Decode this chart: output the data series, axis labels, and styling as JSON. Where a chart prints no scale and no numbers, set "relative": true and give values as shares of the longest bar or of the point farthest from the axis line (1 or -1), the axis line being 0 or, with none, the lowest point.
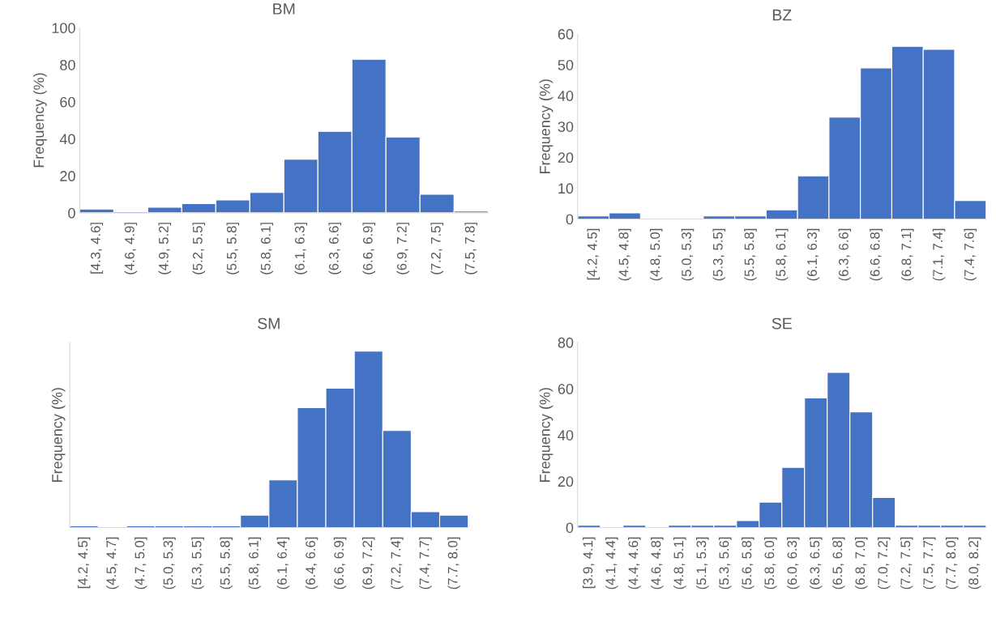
{
  "chart_data": [
    {
      "type": "bar",
      "title": "BM",
      "ylabel": "Frequency (%)",
      "categories": [
        "[4.3, 4.6]",
        "(4.6, 4.9]",
        "(4.9, 5.2]",
        "(5.2, 5.5]",
        "(5.5, 5.8]",
        "(5.8, 6.1]",
        "(6.1, 6.3]",
        "(6.3, 6.6]",
        "(6.6, 6.9]",
        "(6.9, 7.2]",
        "(7.2, 7.5]",
        "(7.5, 7.8]"
      ],
      "values": [
        2,
        0,
        3,
        5,
        7,
        11,
        29,
        44,
        83,
        41,
        10,
        1
      ],
      "color": "#4472c4",
      "ylim": [
        0,
        100
      ],
      "yticks": [
        0,
        20,
        40,
        60,
        80,
        100
      ],
      "grid": false,
      "legend": false
    },
    {
      "type": "bar",
      "title": "BZ",
      "ylabel": "Frequency (%)",
      "categories": [
        "[4.2, 4.5]",
        "(4.5, 4.8]",
        "(4.8, 5.0]",
        "(5.0, 5.3]",
        "(5.3, 5.5]",
        "(5.5, 5.8]",
        "(5.8, 6.1]",
        "(6.1, 6.3]",
        "(6.3, 6.6]",
        "(6.6, 6.8]",
        "(6.8, 7.1]",
        "(7.1, 7.4]",
        "(7.4, 7.6]"
      ],
      "values": [
        1,
        2,
        0,
        0,
        1,
        1,
        3,
        14,
        33,
        49,
        56,
        55,
        6
      ],
      "color": "#4472c4",
      "ylim": [
        0,
        60
      ],
      "yticks": [
        0,
        10,
        20,
        30,
        40,
        50,
        60
      ],
      "grid": false,
      "legend": false
    },
    {
      "type": "bar",
      "title": "SM",
      "ylabel": "Frequency (%)",
      "categories": [
        "[4.2, 4.5]",
        "(4.5, 4.7]",
        "(4.7, 5.0]",
        "(5.0, 5.3]",
        "(5.3, 5.5]",
        "(5.5, 5.8]",
        "(5.8, 6.1]",
        "(6.1, 6.4]",
        "(6.4, 6.6]",
        "(6.6, 6.9]",
        "(6.9, 7.2]",
        "(7.2, 7.4]",
        "(7.4, 7.7]",
        "(7.7, 8.0]"
      ],
      "values": [
        0.01,
        0,
        0.01,
        0.01,
        0.01,
        0.01,
        0.07,
        0.27,
        0.68,
        0.79,
        1,
        0.55,
        0.09,
        0.07
      ],
      "color": "#4472c4",
      "relative": true,
      "grid": false,
      "legend": false
    },
    {
      "type": "bar",
      "title": "SE",
      "ylabel": "Frequency (%)",
      "categories": [
        "[3.9, 4.1]",
        "(4.1, 4.4]",
        "(4.4, 4.6]",
        "(4.6, 4.8]",
        "(4.8, 5.1]",
        "(5.1, 5.3]",
        "(5.3, 5.6]",
        "(5.6, 5.8]",
        "(5.8, 6.0]",
        "(6.0, 6.3]",
        "(6.3, 6.5]",
        "(6.5, 6.8]",
        "(6.8, 7.0]",
        "(7.0, 7.2]",
        "(7.2, 7.5]",
        "(7.5, 7.7]",
        "(7.7, 8.0]",
        "(8.0, 8.2]"
      ],
      "values": [
        1,
        0,
        1,
        0,
        1,
        1,
        1,
        3,
        11,
        26,
        56,
        67,
        50,
        13,
        1,
        1,
        1,
        1
      ],
      "color": "#4472c4",
      "ylim": [
        0,
        80
      ],
      "yticks": [
        0,
        20,
        40,
        60,
        80
      ],
      "grid": false,
      "legend": false
    }
  ]
}
